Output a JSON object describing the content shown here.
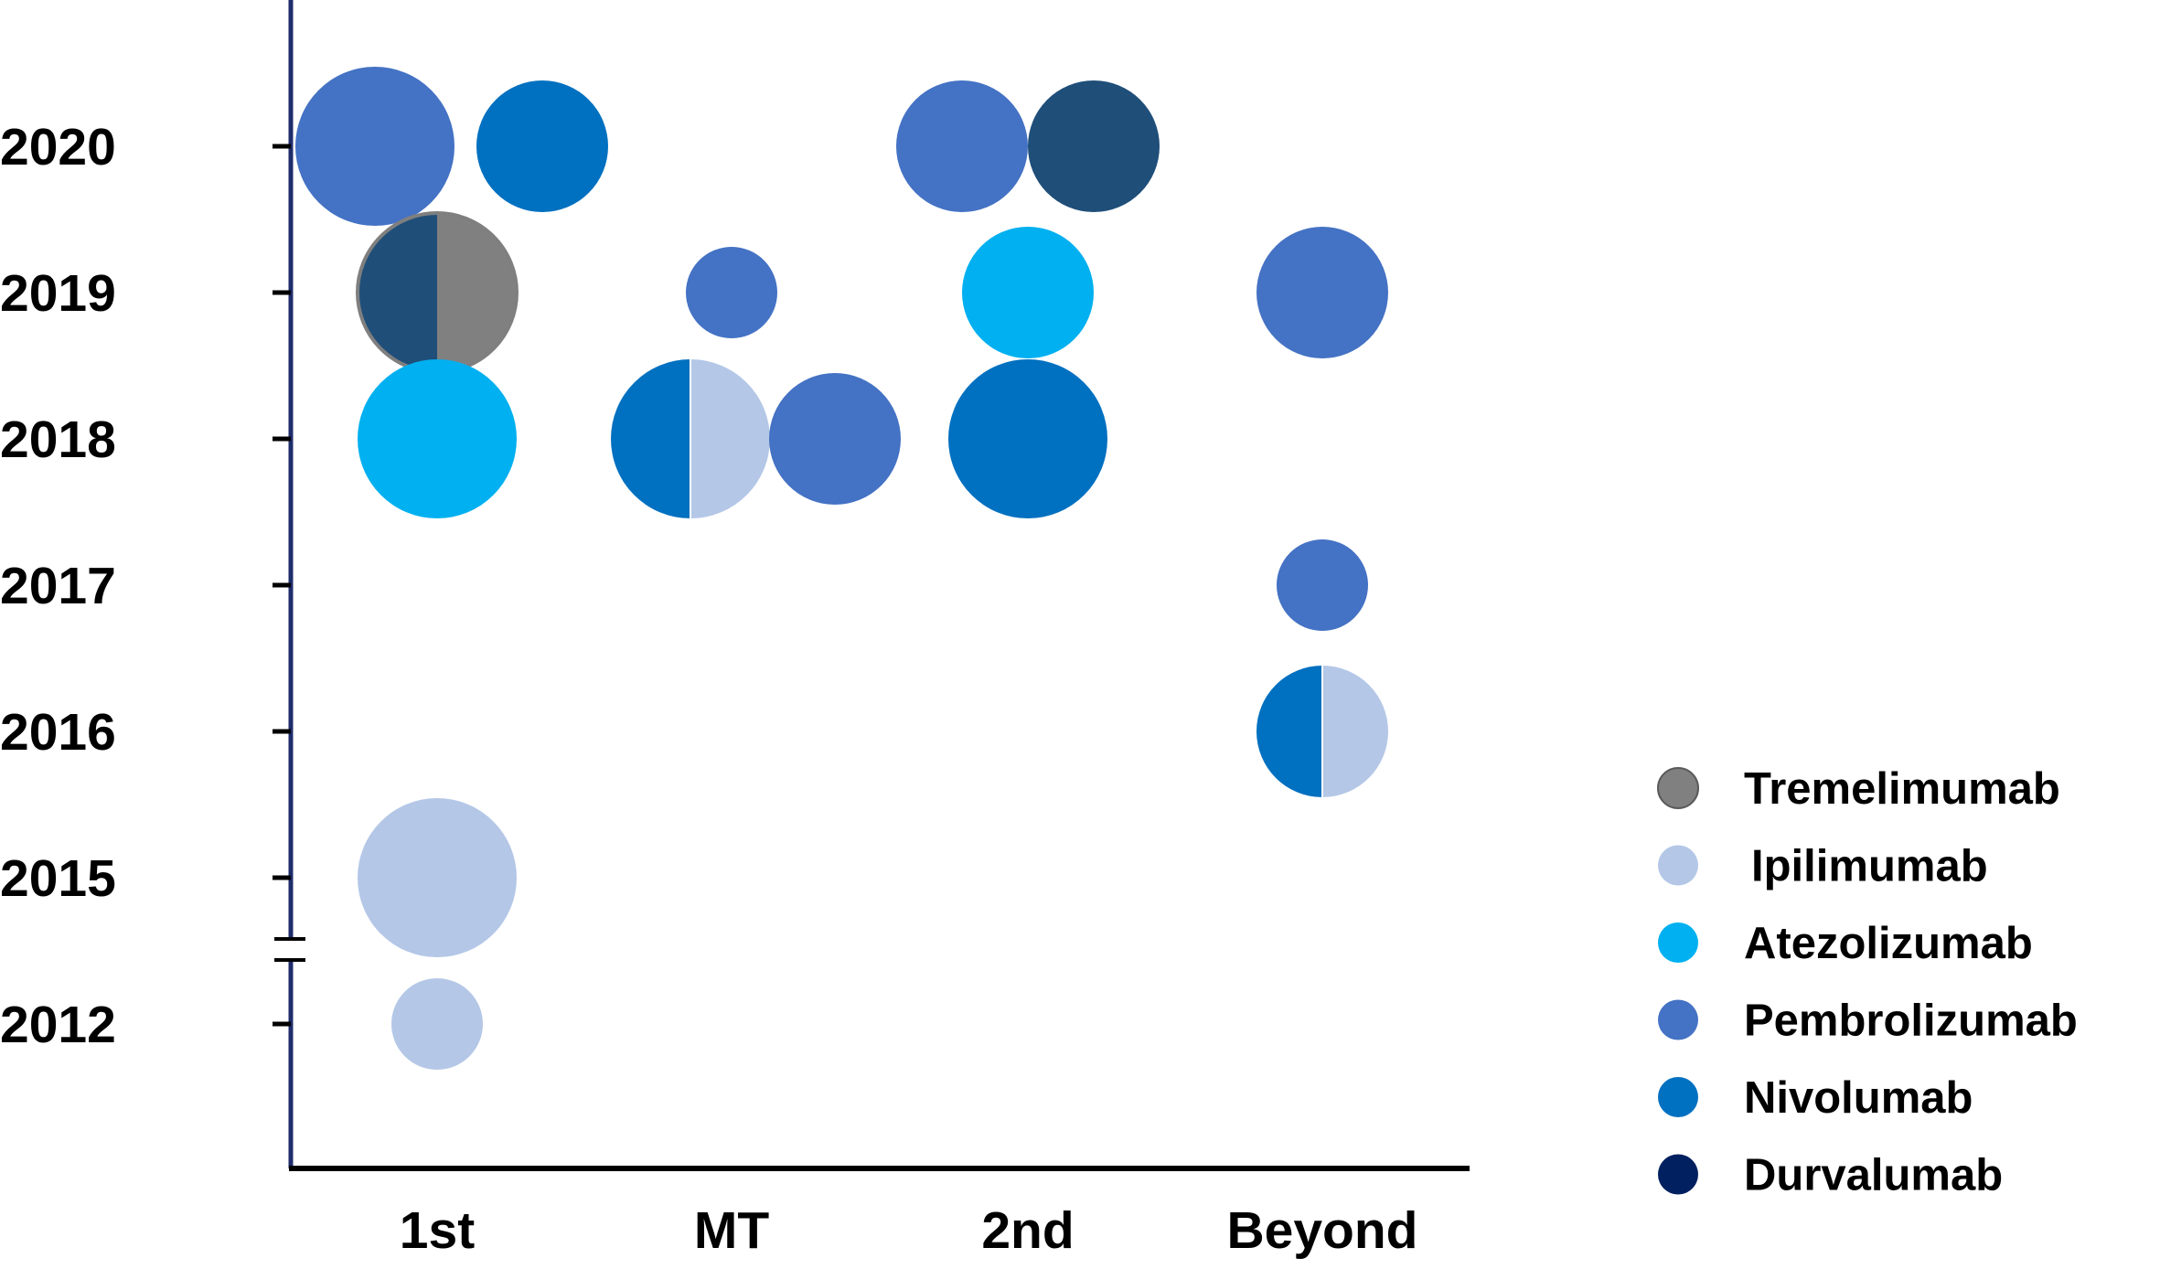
{
  "colors": {
    "Tremelimumab": "#808080",
    "Ipilimumab": "#B4C7E7",
    "Atezolizumab": "#00B0F0",
    "Pembrolizumab": "#4472C4",
    "Nivolumab": "#0070C0",
    "Durvalumab": "#002060",
    "Durvalumab_bubble": "#1F4E79",
    "axis": "#1F2D6B"
  },
  "chart_data": {
    "type": "scatter",
    "subtype": "bubble",
    "title": "",
    "xlabel": "",
    "ylabel": "",
    "categories": [
      "1st",
      "MT",
      "2nd",
      "Beyond"
    ],
    "y_tick_labels": [
      "2012",
      "2015",
      "2016",
      "2017",
      "2018",
      "2019",
      "2020"
    ],
    "y_axis_break": "between 2012 and 2015",
    "grid": false,
    "legend": {
      "placement": "right",
      "entries": [
        "Tremelimumab",
        "Ipilimumab",
        "Atezolizumab",
        "Pembrolizumab",
        "Nivolumab",
        "Durvalumab"
      ]
    },
    "points": [
      {
        "category": "1st",
        "year": "2020",
        "size": 3,
        "drugs": [
          "Pembrolizumab"
        ]
      },
      {
        "category": "1st",
        "year": "2020",
        "size": 2,
        "drugs": [
          "Nivolumab"
        ]
      },
      {
        "category": "1st",
        "year": "2019",
        "size": 3,
        "drugs": [
          "Durvalumab",
          "Tremelimumab"
        ]
      },
      {
        "category": "1st",
        "year": "2018",
        "size": 3,
        "drugs": [
          "Atezolizumab"
        ]
      },
      {
        "category": "1st",
        "year": "2015",
        "size": 3,
        "drugs": [
          "Ipilimumab"
        ]
      },
      {
        "category": "1st",
        "year": "2012",
        "size": 1,
        "drugs": [
          "Ipilimumab"
        ]
      },
      {
        "category": "MT",
        "year": "2019",
        "size": 1,
        "drugs": [
          "Pembrolizumab"
        ]
      },
      {
        "category": "MT",
        "year": "2018",
        "size": 3,
        "drugs": [
          "Nivolumab",
          "Ipilimumab"
        ]
      },
      {
        "category": "MT",
        "year": "2018",
        "size": 2,
        "drugs": [
          "Pembrolizumab"
        ]
      },
      {
        "category": "2nd",
        "year": "2020",
        "size": 2,
        "drugs": [
          "Pembrolizumab"
        ]
      },
      {
        "category": "2nd",
        "year": "2020",
        "size": 2,
        "drugs": [
          "Durvalumab"
        ]
      },
      {
        "category": "2nd",
        "year": "2019",
        "size": 2,
        "drugs": [
          "Atezolizumab"
        ]
      },
      {
        "category": "2nd",
        "year": "2018",
        "size": 3,
        "drugs": [
          "Nivolumab"
        ]
      },
      {
        "category": "Beyond",
        "year": "2019",
        "size": 2,
        "drugs": [
          "Pembrolizumab"
        ]
      },
      {
        "category": "Beyond",
        "year": "2017",
        "size": 1,
        "drugs": [
          "Pembrolizumab"
        ]
      },
      {
        "category": "Beyond",
        "year": "2016",
        "size": 2,
        "drugs": [
          "Nivolumab",
          "Ipilimumab"
        ]
      }
    ]
  }
}
